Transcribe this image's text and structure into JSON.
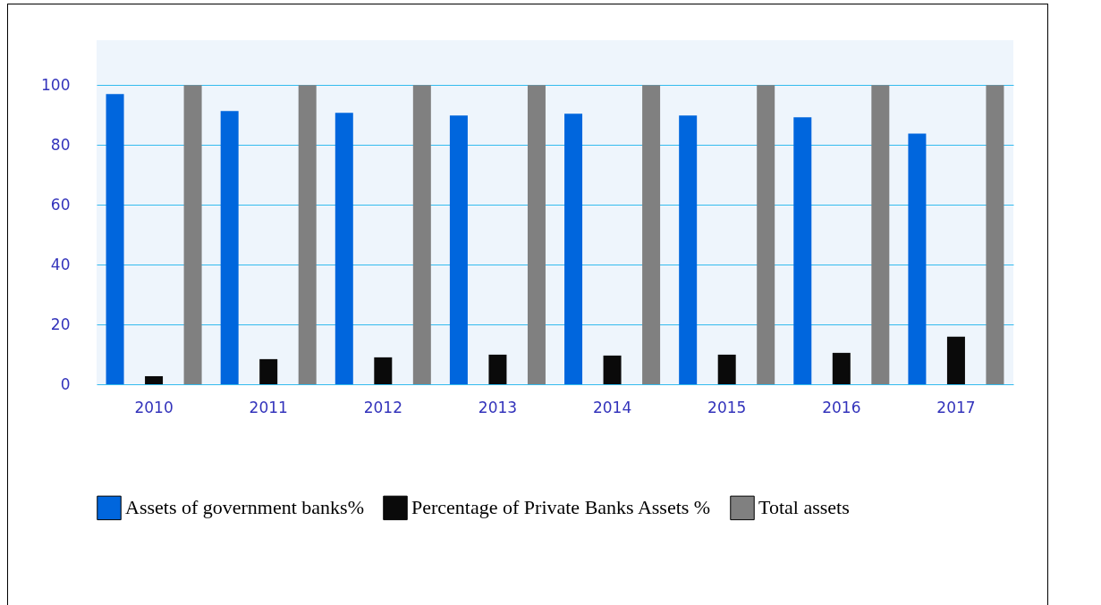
{
  "chart_data": {
    "type": "bar",
    "categories": [
      "2010",
      "2011",
      "2012",
      "2013",
      "2014",
      "2015",
      "2016",
      "2017"
    ],
    "series": [
      {
        "name": "Assets of government banks%",
        "color": "#0066dd",
        "values": [
          97,
          91.3,
          90.7,
          89.8,
          90.4,
          89.8,
          89.2,
          83.8
        ]
      },
      {
        "name": "Percentage of Private Banks Assets %",
        "color": "#0a0a0a",
        "values": [
          2.7,
          8.4,
          9,
          9.9,
          9.6,
          9.9,
          10.5,
          15.9
        ]
      },
      {
        "name": "Total assets",
        "color": "#808080",
        "values": [
          100,
          100,
          100,
          100,
          100,
          100,
          100,
          100
        ]
      }
    ],
    "ylim": [
      0,
      115
    ],
    "yticks": [
      0,
      20,
      40,
      60,
      80,
      100
    ],
    "grid": "y",
    "legend": "bottom"
  }
}
